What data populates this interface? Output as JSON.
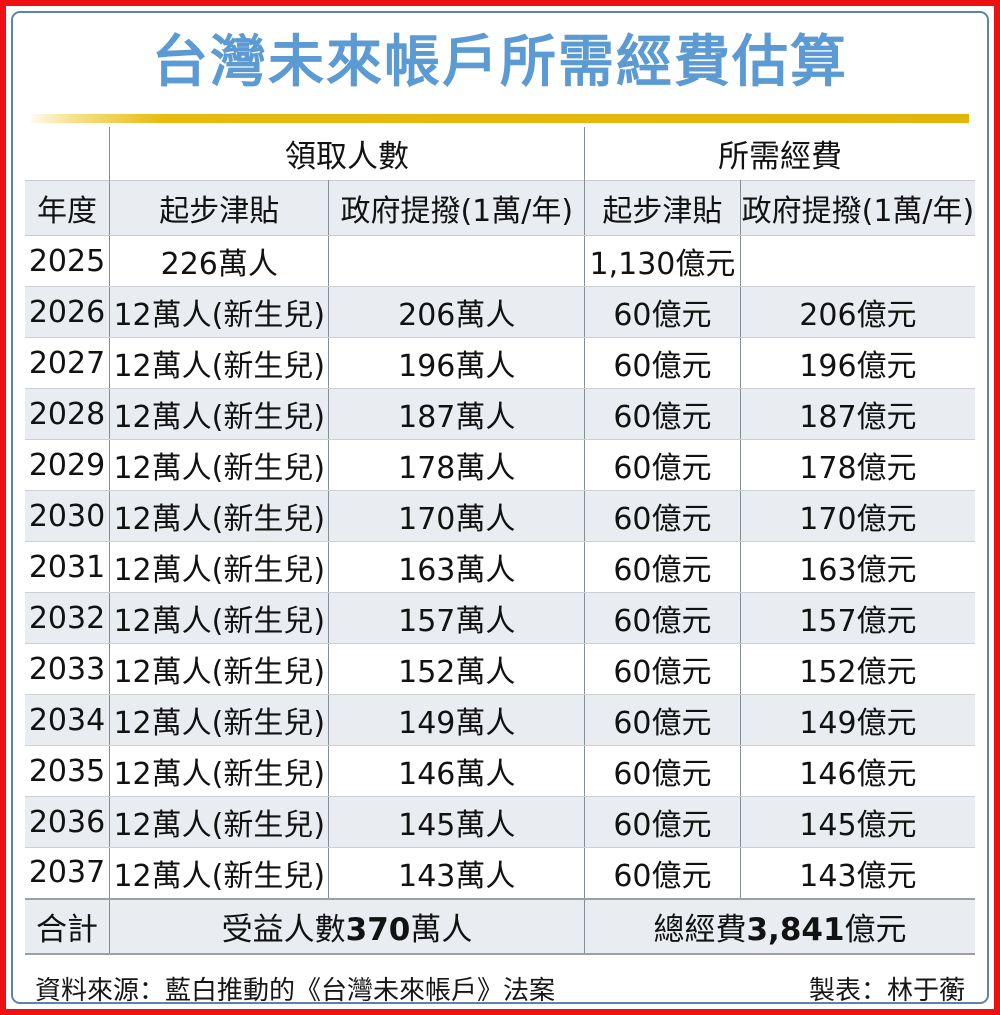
{
  "chart_data": {
    "type": "table",
    "title": "台灣未來帳戶所需經費估算",
    "group_headers": {
      "recipients": "領取人數",
      "funding": "所需經費"
    },
    "columns": [
      "年度",
      "起步津貼",
      "政府提撥(1萬/年)",
      "起步津貼",
      "政府提撥(1萬/年)"
    ],
    "rows": [
      {
        "year": "2025",
        "recipients_starter": "226萬人",
        "recipients_gov": "",
        "funding_starter": "1,130億元",
        "funding_gov": ""
      },
      {
        "year": "2026",
        "recipients_starter": "12萬人(新生兒)",
        "recipients_gov": "206萬人",
        "funding_starter": "60億元",
        "funding_gov": "206億元"
      },
      {
        "year": "2027",
        "recipients_starter": "12萬人(新生兒)",
        "recipients_gov": "196萬人",
        "funding_starter": "60億元",
        "funding_gov": "196億元"
      },
      {
        "year": "2028",
        "recipients_starter": "12萬人(新生兒)",
        "recipients_gov": "187萬人",
        "funding_starter": "60億元",
        "funding_gov": "187億元"
      },
      {
        "year": "2029",
        "recipients_starter": "12萬人(新生兒)",
        "recipients_gov": "178萬人",
        "funding_starter": "60億元",
        "funding_gov": "178億元"
      },
      {
        "year": "2030",
        "recipients_starter": "12萬人(新生兒)",
        "recipients_gov": "170萬人",
        "funding_starter": "60億元",
        "funding_gov": "170億元"
      },
      {
        "year": "2031",
        "recipients_starter": "12萬人(新生兒)",
        "recipients_gov": "163萬人",
        "funding_starter": "60億元",
        "funding_gov": "163億元"
      },
      {
        "year": "2032",
        "recipients_starter": "12萬人(新生兒)",
        "recipients_gov": "157萬人",
        "funding_starter": "60億元",
        "funding_gov": "157億元"
      },
      {
        "year": "2033",
        "recipients_starter": "12萬人(新生兒)",
        "recipients_gov": "152萬人",
        "funding_starter": "60億元",
        "funding_gov": "152億元"
      },
      {
        "year": "2034",
        "recipients_starter": "12萬人(新生兒)",
        "recipients_gov": "149萬人",
        "funding_starter": "60億元",
        "funding_gov": "149億元"
      },
      {
        "year": "2035",
        "recipients_starter": "12萬人(新生兒)",
        "recipients_gov": "146萬人",
        "funding_starter": "60億元",
        "funding_gov": "146億元"
      },
      {
        "year": "2036",
        "recipients_starter": "12萬人(新生兒)",
        "recipients_gov": "145萬人",
        "funding_starter": "60億元",
        "funding_gov": "145億元"
      },
      {
        "year": "2037",
        "recipients_starter": "12萬人(新生兒)",
        "recipients_gov": "143萬人",
        "funding_starter": "60億元",
        "funding_gov": "143億元"
      }
    ],
    "total": {
      "label": "合計",
      "recipients_prefix": "受益人數",
      "recipients_value": "370",
      "recipients_suffix": "萬人",
      "funding_prefix": "總經費",
      "funding_value": "3,841",
      "funding_suffix": "億元"
    },
    "source": "資料來源：藍白推動的《台灣未來帳戶》法案",
    "credit": "製表：林于蘅"
  },
  "colors": {
    "title_blue": "#5b9ad2",
    "accent_gold": "#e2b509",
    "frame_red": "#ee1111",
    "frame_blue": "#5d84ab",
    "row_shade": "#e9edf1",
    "grid_line": "#858d95"
  }
}
